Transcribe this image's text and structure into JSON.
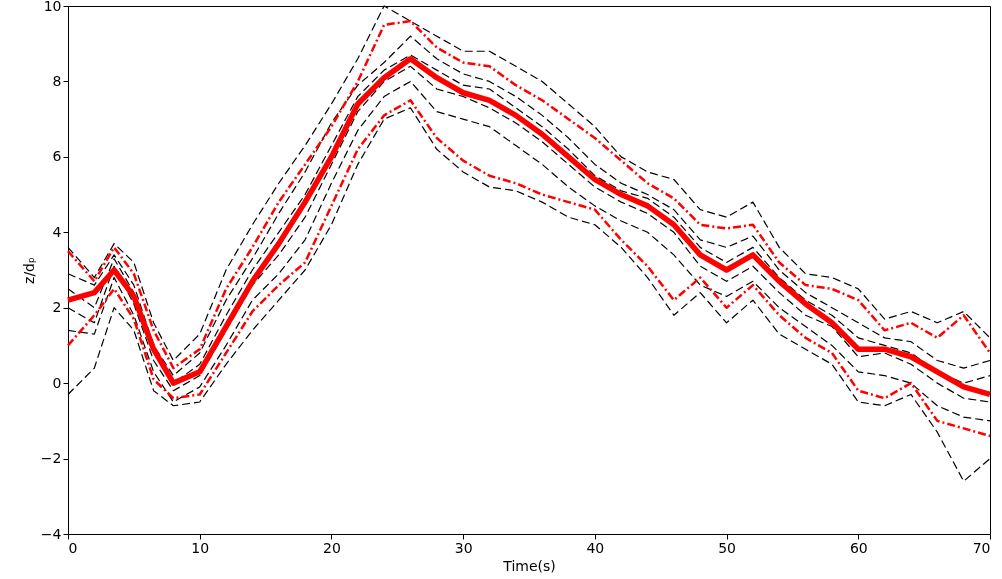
{
  "chart_data": {
    "type": "line",
    "xlabel": "Time(s)",
    "ylabel": "z/dₚ",
    "x": [
      0,
      2,
      3.5,
      5,
      6.5,
      8,
      10,
      12,
      14,
      16,
      18,
      20,
      22,
      24,
      26,
      28,
      30,
      32,
      34,
      36,
      38,
      40,
      42,
      44,
      46,
      48,
      50,
      52,
      54,
      56,
      58,
      60,
      62,
      64,
      66,
      68,
      70
    ],
    "series": [
      {
        "color": "#000000",
        "line_style": "dashed",
        "values": [
          3.6,
          2.8,
          3.7,
          3.2,
          1.6,
          0.6,
          1.3,
          3.0,
          4.2,
          5.3,
          6.3,
          7.4,
          8.6,
          10.0,
          9.6,
          9.2,
          8.8,
          8.8,
          8.4,
          8.0,
          7.4,
          6.8,
          6.0,
          5.6,
          5.4,
          4.6,
          4.4,
          4.8,
          3.6,
          2.9,
          2.8,
          2.5,
          1.7,
          1.9,
          1.6,
          1.9,
          1.2
        ]
      },
      {
        "color": "#000000",
        "line_style": "dashed",
        "values": [
          2.9,
          2.6,
          3.4,
          2.6,
          1.0,
          0.2,
          0.8,
          2.2,
          3.3,
          4.5,
          5.6,
          6.9,
          7.9,
          8.5,
          9.2,
          8.6,
          8.2,
          8.0,
          7.6,
          7.1,
          6.5,
          5.8,
          5.3,
          5.0,
          4.6,
          3.8,
          3.6,
          3.9,
          3.0,
          2.4,
          2.0,
          1.6,
          1.2,
          1.1,
          0.6,
          0.4,
          0.6
        ]
      },
      {
        "color": "#000000",
        "line_style": "dashed",
        "values": [
          2.5,
          2.0,
          3.3,
          2.4,
          0.8,
          0.0,
          0.5,
          1.8,
          3.0,
          4.0,
          5.0,
          6.3,
          7.6,
          8.3,
          8.7,
          8.3,
          7.9,
          7.8,
          7.3,
          6.8,
          6.2,
          5.5,
          5.1,
          4.9,
          4.4,
          3.6,
          3.2,
          3.6,
          2.8,
          2.2,
          1.8,
          1.2,
          1.0,
          0.8,
          0.3,
          0.0,
          0.2
        ]
      },
      {
        "color": "#000000",
        "line_style": "dashed",
        "values": [
          2.0,
          1.6,
          3.1,
          2.1,
          0.6,
          -0.2,
          0.2,
          1.4,
          2.6,
          3.4,
          4.4,
          5.8,
          7.2,
          8.0,
          8.4,
          7.8,
          7.6,
          7.3,
          6.9,
          6.4,
          5.8,
          5.2,
          4.8,
          4.5,
          4.0,
          3.1,
          2.7,
          3.1,
          2.4,
          1.8,
          1.5,
          0.7,
          0.8,
          0.5,
          0.0,
          -0.4,
          -0.5
        ]
      },
      {
        "color": "#000000",
        "line_style": "dashed",
        "values": [
          1.4,
          1.3,
          2.8,
          1.8,
          0.3,
          -0.5,
          -0.1,
          1.0,
          2.2,
          2.9,
          3.8,
          5.3,
          6.7,
          7.6,
          8.0,
          7.2,
          7.0,
          6.8,
          6.3,
          5.8,
          5.2,
          4.7,
          4.3,
          4.0,
          3.4,
          2.6,
          2.3,
          2.7,
          2.0,
          1.5,
          1.0,
          0.3,
          0.2,
          0.0,
          -0.6,
          -0.9,
          -1.0
        ]
      },
      {
        "color": "#000000",
        "line_style": "dashed",
        "values": [
          -0.3,
          0.4,
          2.0,
          1.4,
          -0.2,
          -0.6,
          -0.5,
          0.5,
          1.4,
          2.2,
          3.0,
          4.2,
          5.8,
          7.0,
          7.3,
          6.2,
          5.6,
          5.2,
          5.1,
          4.8,
          4.4,
          4.2,
          3.6,
          2.8,
          1.8,
          2.4,
          1.6,
          2.2,
          1.3,
          0.9,
          0.5,
          -0.5,
          -0.6,
          -0.3,
          -1.3,
          -2.6,
          -2.0
        ]
      },
      {
        "color": "#ff0000",
        "line_style": "dashdot",
        "values": [
          3.5,
          2.7,
          3.6,
          2.9,
          1.4,
          0.4,
          0.9,
          2.5,
          3.6,
          4.8,
          5.8,
          6.8,
          8.0,
          9.5,
          9.6,
          8.9,
          8.5,
          8.4,
          7.9,
          7.5,
          7.0,
          6.5,
          5.9,
          5.3,
          4.9,
          4.2,
          4.1,
          4.2,
          3.2,
          2.6,
          2.5,
          2.2,
          1.4,
          1.6,
          1.2,
          1.8,
          0.8
        ]
      },
      {
        "color": "#ff0000",
        "line_style": "dashdot",
        "values": [
          1.0,
          1.8,
          2.5,
          1.7,
          0.1,
          -0.4,
          -0.3,
          0.8,
          1.9,
          2.6,
          3.2,
          4.7,
          6.2,
          7.1,
          7.5,
          6.5,
          5.9,
          5.5,
          5.3,
          5.0,
          4.8,
          4.6,
          3.8,
          3.1,
          2.2,
          2.8,
          2.0,
          2.6,
          1.8,
          1.2,
          0.8,
          -0.2,
          -0.4,
          0.0,
          -1.0,
          -1.2,
          -1.4
        ]
      },
      {
        "color": "#ff0000",
        "line_style": "solid",
        "values": [
          2.2,
          2.4,
          3.0,
          2.3,
          0.9,
          0.0,
          0.3,
          1.5,
          2.7,
          3.7,
          4.8,
          6.0,
          7.4,
          8.1,
          8.6,
          8.1,
          7.7,
          7.5,
          7.1,
          6.6,
          6.0,
          5.4,
          5.0,
          4.7,
          4.2,
          3.4,
          3.0,
          3.4,
          2.7,
          2.1,
          1.6,
          0.9,
          0.9,
          0.7,
          0.3,
          -0.1,
          -0.3
        ]
      }
    ],
    "xlim": [
      0,
      70
    ],
    "xticks": [
      0,
      10,
      20,
      30,
      40,
      50,
      60,
      70
    ],
    "ylim": [
      -4,
      10
    ],
    "yticks": [
      -4,
      -2,
      0,
      2,
      4,
      6,
      8,
      10
    ],
    "grid": false,
    "marker": "none"
  }
}
